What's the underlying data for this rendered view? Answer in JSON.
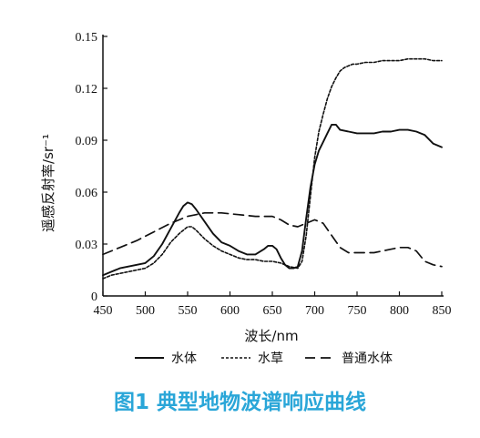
{
  "caption": "图1 典型地物波谱响应曲线",
  "chart_data": {
    "type": "line",
    "title": "",
    "xlabel": "波长/nm",
    "ylabel": "遥感反射率/sr⁻¹",
    "xlim": [
      450,
      850
    ],
    "ylim": [
      0,
      0.15
    ],
    "xticks": [
      450,
      500,
      550,
      600,
      650,
      700,
      750,
      800,
      850
    ],
    "xtick_labels": [
      "450",
      "500",
      "550",
      "600",
      "650",
      "700",
      "750",
      "800",
      "850"
    ],
    "yticks": [
      0,
      0.03,
      0.06,
      0.09,
      0.12,
      0.15
    ],
    "ytick_labels": [
      "0",
      "0.03",
      "0.06",
      "0.09",
      "0.12",
      "0.15"
    ],
    "grid": false,
    "legend_position": "bottom",
    "series": [
      {
        "name": "水体",
        "style": "solid",
        "color": "#111111",
        "x": [
          450,
          460,
          470,
          480,
          490,
          500,
          510,
          520,
          530,
          540,
          545,
          550,
          555,
          560,
          570,
          580,
          590,
          600,
          610,
          620,
          630,
          640,
          645,
          650,
          655,
          660,
          665,
          670,
          675,
          680,
          685,
          690,
          695,
          700,
          705,
          710,
          715,
          720,
          725,
          730,
          740,
          750,
          760,
          770,
          780,
          790,
          800,
          810,
          820,
          830,
          840,
          850
        ],
        "y": [
          0.012,
          0.014,
          0.016,
          0.017,
          0.018,
          0.019,
          0.023,
          0.03,
          0.039,
          0.048,
          0.052,
          0.054,
          0.053,
          0.05,
          0.043,
          0.036,
          0.031,
          0.029,
          0.026,
          0.024,
          0.024,
          0.027,
          0.029,
          0.029,
          0.027,
          0.022,
          0.018,
          0.016,
          0.016,
          0.017,
          0.026,
          0.045,
          0.063,
          0.076,
          0.084,
          0.089,
          0.094,
          0.099,
          0.099,
          0.096,
          0.095,
          0.094,
          0.094,
          0.094,
          0.095,
          0.095,
          0.096,
          0.096,
          0.095,
          0.093,
          0.088,
          0.086
        ]
      },
      {
        "name": "水草",
        "style": "dotted",
        "color": "#111111",
        "x": [
          450,
          460,
          470,
          480,
          490,
          500,
          510,
          520,
          530,
          540,
          550,
          555,
          560,
          570,
          580,
          590,
          600,
          610,
          620,
          630,
          640,
          650,
          660,
          670,
          680,
          685,
          690,
          695,
          700,
          705,
          710,
          715,
          720,
          725,
          730,
          735,
          740,
          745,
          750,
          760,
          770,
          780,
          790,
          800,
          810,
          820,
          830,
          840,
          850
        ],
        "y": [
          0.01,
          0.012,
          0.013,
          0.014,
          0.015,
          0.016,
          0.019,
          0.024,
          0.031,
          0.036,
          0.04,
          0.04,
          0.038,
          0.033,
          0.029,
          0.026,
          0.024,
          0.022,
          0.021,
          0.021,
          0.02,
          0.02,
          0.019,
          0.017,
          0.016,
          0.02,
          0.035,
          0.058,
          0.08,
          0.095,
          0.105,
          0.114,
          0.121,
          0.126,
          0.13,
          0.132,
          0.133,
          0.134,
          0.134,
          0.135,
          0.135,
          0.136,
          0.136,
          0.136,
          0.137,
          0.137,
          0.137,
          0.136,
          0.136
        ]
      },
      {
        "name": "普通水体",
        "style": "dashed",
        "color": "#111111",
        "x": [
          450,
          470,
          490,
          510,
          530,
          550,
          570,
          590,
          610,
          630,
          650,
          660,
          670,
          680,
          690,
          700,
          710,
          720,
          730,
          740,
          750,
          760,
          770,
          780,
          790,
          800,
          810,
          820,
          830,
          840,
          850
        ],
        "y": [
          0.024,
          0.028,
          0.032,
          0.037,
          0.042,
          0.046,
          0.048,
          0.048,
          0.047,
          0.046,
          0.046,
          0.044,
          0.041,
          0.04,
          0.042,
          0.044,
          0.042,
          0.035,
          0.028,
          0.025,
          0.025,
          0.025,
          0.025,
          0.026,
          0.027,
          0.028,
          0.028,
          0.026,
          0.02,
          0.018,
          0.017
        ]
      }
    ]
  }
}
